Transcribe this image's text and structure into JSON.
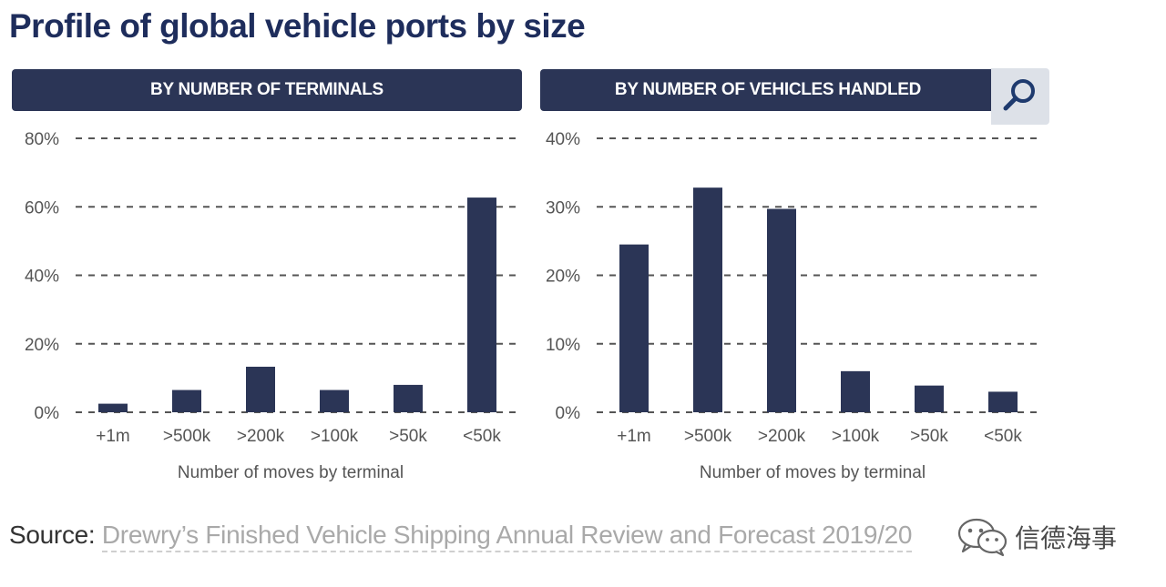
{
  "title": "Profile of global vehicle ports by size",
  "colors": {
    "bar": "#2b3556",
    "header_bg": "#2b3556",
    "title": "#1e2d5c",
    "grid": "#555555"
  },
  "source": {
    "label": "Source:",
    "text": "Drewry’s Finished Vehicle Shipping Annual Review and Forecast 2019/20"
  },
  "brand": {
    "name": "信德海事",
    "icon": "wechat-icon"
  },
  "search": {
    "icon": "search-icon"
  },
  "chart_data": [
    {
      "type": "bar",
      "title": "BY NUMBER OF TERMINALS",
      "xlabel": "Number of moves by terminal",
      "ylabel": "",
      "categories": [
        "+1m",
        ">500k",
        ">200k",
        ">100k",
        ">50k",
        "<50k"
      ],
      "values": [
        2.5,
        6.5,
        13.3,
        6.5,
        8.0,
        62.7
      ],
      "ylim": [
        0,
        80
      ],
      "yticks": [
        0,
        20,
        40,
        60,
        80
      ],
      "ytick_labels": [
        "0%",
        "20%",
        "40%",
        "60%",
        "80%"
      ],
      "grid": true
    },
    {
      "type": "bar",
      "title": "BY NUMBER OF VEHICLES HANDLED",
      "xlabel": "Number of moves by terminal",
      "ylabel": "",
      "categories": [
        "+1m",
        ">500k",
        ">200k",
        ">100k",
        ">50k",
        "<50k"
      ],
      "values": [
        24.5,
        32.8,
        29.7,
        6.0,
        3.9,
        3.0
      ],
      "ylim": [
        0,
        40
      ],
      "yticks": [
        0,
        10,
        20,
        30,
        40
      ],
      "ytick_labels": [
        "0%",
        "10%",
        "20%",
        "30%",
        "40%"
      ],
      "grid": true
    }
  ]
}
